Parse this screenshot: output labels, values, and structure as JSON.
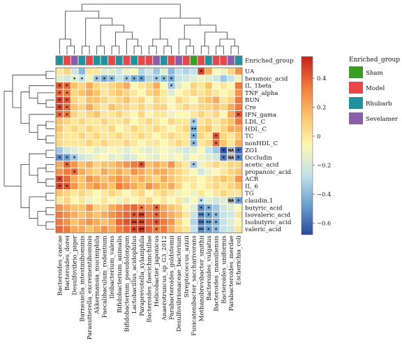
{
  "chart_data": {
    "type": "heatmap",
    "title": "",
    "rows": [
      "UA",
      "hexanoic_acid",
      "IL_1beta",
      "TNF_alpha",
      "BUN",
      "Cre",
      "IFN_gama",
      "LDL_C",
      "HDL_C",
      "TC",
      "nonHDL_C",
      "ZO1",
      "Occludin",
      "acetic_acid",
      "propanoic_acid",
      "ACR",
      "IL_6",
      "TG",
      "claudin.1",
      "butyric_acid",
      "Isovaleric_acid",
      "Isobutyric_acid",
      "valeric_acid"
    ],
    "columns": [
      "Bacteroides_caecae",
      "Bacteroides_dorei",
      "Desulfovibrio_piger",
      "Barnesiella_intestinihominis",
      "Parasutterella_excrementihominis",
      "Akkermansia_muciniphila",
      "Faecalibaculum_rodentium",
      "Ileibacterium_valens",
      "Bifidobacterium_animalis",
      "Bifidobacterium_pseudolongum",
      "Lactobacillus_acidophilus",
      "Paraprevotella_xylaniphila",
      "Bacteroides_faecichinchillae",
      "Helicobacter_japonicus",
      "Anaerotruncus_sp_G3_2012",
      "Parabacteroides_goldsteinii",
      "Desulfovibrionaceae_bacterium",
      "Streptococcus_azizii",
      "Fusicatenibacter_saccharivorans",
      "Methanobrevibacter_smithii",
      "Bacteroides_vulgatus",
      "Bacteroides_massiliensis",
      "Bacteroides_uniformis",
      "Parabacteroides_merdae",
      "Escherichia_coli"
    ],
    "enriched_group_label": "Enriched_group",
    "enriched_groups": [
      "Rhubarb",
      "Model",
      "Sevelamer",
      "Rhubarb",
      "Model",
      "Rhubarb",
      "Rhubarb",
      "Model",
      "Rhubarb",
      "Model",
      "Rhubarb",
      "Model",
      "Model",
      "Sevelamer",
      "Rhubarb",
      "Model",
      "Sevelamer",
      "Model",
      "Sham",
      "Model",
      "Rhubarb",
      "Model",
      "Model",
      "Sevelamer",
      "Rhubarb"
    ],
    "legend": {
      "title": "Enriched_group",
      "items": [
        {
          "name": "Sham",
          "color": "#3a9d23"
        },
        {
          "name": "Model",
          "color": "#e8474a"
        },
        {
          "name": "Rhubarb",
          "color": "#20929e"
        },
        {
          "name": "Sevelamer",
          "color": "#8a5ea8"
        }
      ]
    },
    "colorbar": {
      "ticks": [
        0.4,
        0.2,
        0,
        -0.2,
        -0.4,
        -0.6
      ],
      "tick_labels": [
        "0.4",
        "0.2",
        "0",
        "−0.2",
        "−0.4",
        "−0.6"
      ],
      "range": [
        -0.68,
        0.55
      ],
      "colors": [
        "#2b4a9e",
        "#6aa0d0",
        "#c3e2ea",
        "#fbf7b4",
        "#fcc46a",
        "#f07a3a",
        "#c4221c"
      ]
    },
    "values": [
      [
        0.05,
        0.1,
        -0.15,
        -0.35,
        0.05,
        0.05,
        -0.1,
        -0.1,
        -0.15,
        -0.05,
        0.0,
        -0.25,
        -0.15,
        -0.3,
        -0.1,
        -0.35,
        -0.2,
        -0.25,
        -0.2,
        0.45,
        0.2,
        0.0,
        -0.05,
        0.1,
        0.25
      ],
      [
        -0.1,
        -0.15,
        -0.1,
        -0.2,
        -0.05,
        -0.3,
        -0.4,
        -0.35,
        -0.2,
        -0.3,
        -0.4,
        -0.45,
        -0.25,
        -0.3,
        -0.35,
        -0.4,
        -0.2,
        -0.15,
        -0.1,
        -0.05,
        -0.1,
        -0.15,
        -0.3,
        -0.2,
        -0.05
      ],
      [
        0.4,
        0.35,
        0.15,
        0.1,
        0.2,
        0.1,
        0.05,
        0.1,
        0.15,
        0.2,
        0.0,
        0.05,
        0.1,
        0.2,
        0.0,
        -0.3,
        -0.1,
        0.0,
        0.1,
        0.05,
        0.15,
        0.0,
        0.05,
        0.0,
        0.3
      ],
      [
        0.35,
        0.3,
        0.1,
        0.15,
        0.2,
        0.15,
        0.05,
        0.1,
        0.15,
        0.1,
        0.05,
        0.0,
        0.1,
        0.15,
        0.05,
        -0.1,
        0.0,
        0.05,
        0.1,
        0.05,
        0.1,
        0.05,
        0.0,
        0.05,
        0.25
      ],
      [
        0.45,
        0.4,
        0.1,
        0.05,
        0.15,
        0.15,
        0.1,
        0.05,
        0.1,
        0.15,
        0.05,
        0.1,
        0.0,
        0.1,
        0.05,
        0.0,
        0.1,
        0.05,
        0.0,
        0.1,
        0.15,
        0.2,
        0.05,
        0.1,
        0.3
      ],
      [
        0.45,
        0.35,
        0.15,
        0.1,
        0.2,
        0.1,
        0.05,
        0.15,
        0.1,
        0.1,
        0.05,
        0.1,
        0.05,
        0.1,
        0.1,
        0.0,
        0.05,
        0.1,
        0.05,
        0.1,
        0.1,
        0.15,
        0.1,
        0.2,
        0.3
      ],
      [
        0.35,
        0.3,
        0.1,
        0.05,
        0.1,
        0.15,
        0.05,
        0.05,
        0.1,
        0.05,
        0.0,
        0.1,
        0.0,
        0.05,
        0.05,
        -0.05,
        0.0,
        0.0,
        0.05,
        0.1,
        0.05,
        0.1,
        0.0,
        0.2,
        0.4
      ],
      [
        0.15,
        0.1,
        0.05,
        0.1,
        0.05,
        0.05,
        0.1,
        0.05,
        0.05,
        0.1,
        0.0,
        0.05,
        0.1,
        0.05,
        0.0,
        0.1,
        0.05,
        0.05,
        -0.3,
        0.05,
        0.1,
        0.05,
        0.1,
        0.15,
        0.3
      ],
      [
        0.15,
        0.05,
        0.1,
        0.05,
        0.1,
        0.05,
        0.05,
        0.1,
        0.0,
        0.05,
        0.1,
        0.05,
        0.05,
        0.1,
        0.05,
        0.0,
        0.05,
        0.1,
        -0.4,
        0.1,
        0.15,
        0.05,
        0.1,
        0.2,
        0.2
      ],
      [
        0.1,
        0.05,
        0.05,
        0.1,
        0.05,
        0.1,
        0.05,
        0.05,
        0.1,
        0.05,
        0.05,
        0.1,
        0.05,
        0.0,
        0.05,
        0.1,
        0.05,
        0.05,
        -0.4,
        0.1,
        0.05,
        0.4,
        0.1,
        0.05,
        0.15
      ],
      [
        0.1,
        0.05,
        0.05,
        0.05,
        0.1,
        0.05,
        0.1,
        0.05,
        0.05,
        0.1,
        0.05,
        0.0,
        0.05,
        0.05,
        0.0,
        0.05,
        0.1,
        0.05,
        -0.35,
        0.05,
        0.1,
        0.35,
        0.15,
        0.05,
        0.2
      ],
      [
        -0.3,
        -0.15,
        -0.1,
        -0.05,
        0.0,
        -0.1,
        -0.05,
        0.0,
        -0.05,
        -0.1,
        0.0,
        -0.05,
        -0.1,
        -0.05,
        0.0,
        -0.05,
        -0.1,
        -0.15,
        -0.1,
        0.0,
        -0.2,
        -0.3,
        -0.65,
        null,
        -0.6
      ],
      [
        -0.5,
        -0.45,
        -0.3,
        -0.15,
        -0.1,
        -0.05,
        0.0,
        -0.1,
        -0.05,
        -0.15,
        -0.1,
        0.0,
        -0.05,
        -0.1,
        0.0,
        -0.05,
        0.0,
        -0.1,
        0.0,
        -0.05,
        -0.1,
        -0.15,
        -0.55,
        null,
        -0.55
      ],
      [
        0.2,
        0.35,
        0.25,
        0.15,
        0.2,
        0.1,
        0.15,
        0.15,
        0.2,
        0.25,
        0.3,
        0.4,
        0.15,
        0.2,
        0.15,
        0.25,
        0.1,
        0.05,
        -0.3,
        -0.05,
        0.05,
        0.1,
        0.05,
        0.1,
        0.1
      ],
      [
        0.25,
        0.3,
        0.35,
        0.2,
        0.15,
        0.1,
        0.2,
        0.15,
        0.2,
        0.15,
        0.25,
        0.2,
        0.15,
        0.2,
        0.2,
        0.15,
        0.1,
        0.05,
        0.0,
        -0.15,
        -0.05,
        0.0,
        0.05,
        0.1,
        0.15
      ],
      [
        0.45,
        0.35,
        0.2,
        0.15,
        0.25,
        0.2,
        0.15,
        0.2,
        0.25,
        0.2,
        0.15,
        0.2,
        0.15,
        0.1,
        0.2,
        0.15,
        0.1,
        0.05,
        0.05,
        0.0,
        0.05,
        0.1,
        0.15,
        0.1,
        0.25
      ],
      [
        0.45,
        0.4,
        0.25,
        0.15,
        0.2,
        0.25,
        0.2,
        0.15,
        0.3,
        0.25,
        0.2,
        0.15,
        0.25,
        0.2,
        0.15,
        0.2,
        0.1,
        0.0,
        0.05,
        0.0,
        0.05,
        0.1,
        0.05,
        0.1,
        0.15
      ],
      [
        0.15,
        0.1,
        0.05,
        0.1,
        0.05,
        0.0,
        0.05,
        0.1,
        0.05,
        0.0,
        0.05,
        0.1,
        0.0,
        0.05,
        0.1,
        0.05,
        -0.05,
        0.0,
        -0.05,
        0.05,
        0.0,
        0.05,
        0.1,
        0.05,
        0.05
      ],
      [
        0.05,
        0.1,
        0.0,
        0.05,
        -0.05,
        0.0,
        0.05,
        0.0,
        -0.05,
        0.05,
        0.0,
        0.05,
        0.1,
        0.0,
        0.05,
        0.0,
        0.05,
        -0.1,
        0.0,
        -0.2,
        -0.1,
        -0.15,
        -0.1,
        null,
        -0.45
      ],
      [
        0.25,
        0.2,
        0.15,
        0.15,
        0.25,
        0.1,
        0.1,
        0.2,
        0.25,
        0.3,
        0.35,
        0.3,
        0.25,
        0.35,
        0.2,
        0.15,
        0.1,
        0.0,
        -0.1,
        -0.5,
        -0.4,
        -0.3,
        -0.15,
        -0.1,
        0.0
      ],
      [
        0.3,
        0.25,
        0.2,
        0.15,
        0.2,
        0.15,
        0.2,
        0.25,
        0.3,
        0.35,
        0.4,
        0.45,
        0.3,
        0.35,
        0.25,
        0.2,
        0.15,
        0.05,
        -0.2,
        -0.5,
        -0.45,
        -0.35,
        -0.2,
        -0.15,
        0.05
      ],
      [
        0.3,
        0.25,
        0.15,
        0.2,
        0.25,
        0.2,
        0.15,
        0.2,
        0.35,
        0.4,
        0.45,
        0.45,
        0.35,
        0.4,
        0.3,
        0.25,
        0.1,
        0.0,
        -0.25,
        -0.55,
        -0.45,
        -0.4,
        -0.2,
        -0.1,
        0.0
      ],
      [
        0.35,
        0.3,
        0.2,
        0.2,
        0.15,
        0.2,
        0.25,
        0.2,
        0.3,
        0.35,
        0.45,
        0.5,
        0.35,
        0.3,
        0.3,
        0.2,
        0.1,
        0.05,
        -0.2,
        -0.5,
        -0.45,
        -0.35,
        -0.2,
        -0.15,
        0.05
      ]
    ],
    "significance": [
      [
        0,
        0,
        0,
        0,
        0,
        0,
        0,
        0,
        0,
        0,
        0,
        0,
        0,
        0,
        0,
        0,
        0,
        0,
        0,
        1,
        0,
        0,
        0,
        0,
        0
      ],
      [
        0,
        0,
        1,
        1,
        0,
        1,
        1,
        1,
        0,
        1,
        1,
        1,
        0,
        1,
        1,
        1,
        0,
        0,
        0,
        0,
        0,
        0,
        0,
        0,
        0
      ],
      [
        1,
        1,
        0,
        0,
        0,
        0,
        0,
        0,
        0,
        0,
        0,
        0,
        0,
        0,
        0,
        1,
        0,
        0,
        0,
        0,
        0,
        0,
        0,
        0,
        0
      ],
      [
        1,
        1,
        0,
        0,
        0,
        0,
        0,
        0,
        0,
        0,
        0,
        0,
        0,
        0,
        0,
        0,
        0,
        0,
        0,
        0,
        0,
        0,
        0,
        0,
        0
      ],
      [
        1,
        1,
        0,
        0,
        0,
        0,
        0,
        0,
        0,
        0,
        0,
        0,
        0,
        0,
        0,
        0,
        0,
        0,
        0,
        0,
        0,
        0,
        0,
        0,
        0
      ],
      [
        1,
        1,
        0,
        0,
        0,
        0,
        0,
        0,
        0,
        0,
        0,
        0,
        0,
        0,
        0,
        0,
        0,
        0,
        0,
        0,
        0,
        0,
        0,
        0,
        0
      ],
      [
        1,
        1,
        0,
        0,
        0,
        0,
        0,
        0,
        0,
        0,
        0,
        0,
        0,
        0,
        0,
        0,
        0,
        0,
        0,
        0,
        0,
        0,
        0,
        0,
        1
      ],
      [
        0,
        0,
        0,
        0,
        0,
        0,
        0,
        0,
        0,
        0,
        0,
        0,
        0,
        0,
        0,
        0,
        0,
        0,
        1,
        0,
        0,
        0,
        0,
        0,
        0
      ],
      [
        0,
        0,
        0,
        0,
        0,
        0,
        0,
        0,
        0,
        0,
        0,
        0,
        0,
        0,
        0,
        0,
        0,
        0,
        2,
        0,
        0,
        0,
        0,
        0,
        0
      ],
      [
        0,
        0,
        0,
        0,
        0,
        0,
        0,
        0,
        0,
        0,
        0,
        0,
        0,
        0,
        0,
        0,
        0,
        0,
        1,
        0,
        0,
        1,
        0,
        0,
        0
      ],
      [
        0,
        0,
        0,
        0,
        0,
        0,
        0,
        0,
        0,
        0,
        0,
        0,
        0,
        0,
        0,
        0,
        0,
        0,
        1,
        0,
        0,
        1,
        0,
        0,
        0
      ],
      [
        0,
        0,
        0,
        0,
        0,
        0,
        0,
        0,
        0,
        0,
        0,
        0,
        0,
        0,
        0,
        0,
        0,
        0,
        0,
        0,
        0,
        0,
        1,
        0,
        1
      ],
      [
        1,
        1,
        1,
        0,
        0,
        0,
        0,
        0,
        0,
        0,
        0,
        0,
        0,
        0,
        0,
        0,
        0,
        0,
        0,
        0,
        0,
        0,
        1,
        0,
        1
      ],
      [
        0,
        1,
        0,
        0,
        0,
        0,
        0,
        0,
        0,
        0,
        0,
        1,
        0,
        0,
        0,
        0,
        0,
        0,
        1,
        0,
        0,
        0,
        0,
        0,
        0
      ],
      [
        0,
        0,
        1,
        0,
        0,
        0,
        0,
        0,
        0,
        0,
        0,
        0,
        0,
        0,
        0,
        0,
        0,
        0,
        0,
        0,
        0,
        0,
        0,
        0,
        0
      ],
      [
        1,
        0,
        0,
        0,
        0,
        0,
        0,
        0,
        0,
        0,
        0,
        0,
        0,
        0,
        0,
        0,
        0,
        0,
        0,
        0,
        0,
        0,
        0,
        0,
        0
      ],
      [
        1,
        1,
        0,
        0,
        0,
        0,
        0,
        0,
        0,
        0,
        0,
        0,
        0,
        0,
        0,
        0,
        0,
        0,
        0,
        0,
        0,
        0,
        0,
        0,
        0
      ],
      [
        0,
        0,
        0,
        0,
        0,
        0,
        0,
        0,
        0,
        0,
        0,
        0,
        0,
        0,
        0,
        0,
        0,
        0,
        0,
        0,
        0,
        0,
        0,
        0,
        0
      ],
      [
        0,
        0,
        0,
        0,
        0,
        0,
        0,
        0,
        0,
        0,
        0,
        0,
        0,
        0,
        0,
        0,
        0,
        0,
        0,
        1,
        0,
        0,
        0,
        0,
        1
      ],
      [
        0,
        0,
        0,
        0,
        0,
        0,
        0,
        0,
        0,
        0,
        0,
        1,
        0,
        1,
        0,
        0,
        0,
        0,
        0,
        1,
        1,
        0,
        0,
        0,
        0
      ],
      [
        0,
        0,
        0,
        0,
        0,
        0,
        0,
        0,
        0,
        0,
        1,
        2,
        0,
        1,
        0,
        0,
        0,
        0,
        0,
        2,
        1,
        1,
        0,
        0,
        0
      ],
      [
        0,
        0,
        0,
        0,
        0,
        0,
        0,
        0,
        0,
        0,
        2,
        2,
        0,
        1,
        0,
        0,
        0,
        0,
        0,
        2,
        2,
        1,
        0,
        0,
        0
      ],
      [
        0,
        0,
        0,
        0,
        0,
        0,
        0,
        0,
        0,
        0,
        1,
        2,
        0,
        1,
        0,
        0,
        0,
        0,
        0,
        2,
        1,
        1,
        0,
        0,
        0
      ]
    ],
    "na_label": "NA"
  }
}
